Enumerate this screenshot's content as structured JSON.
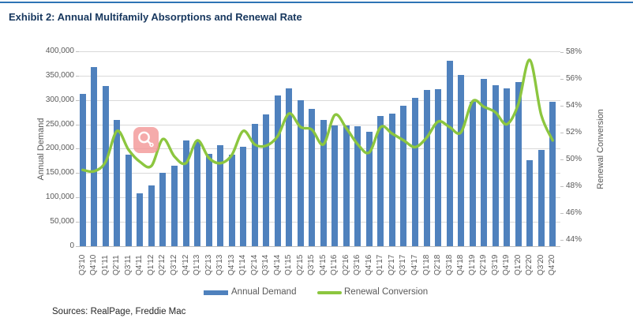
{
  "page": {
    "title": "Exhibit 2: Annual Multifamily Absorptions and Renewal Rate",
    "sources": "Sources: RealPage, Freddie Mac"
  },
  "chart_data": {
    "type": "bar+line combo",
    "categories": [
      "Q3'10",
      "Q4'10",
      "Q1'11",
      "Q2'11",
      "Q3'11",
      "Q4'11",
      "Q1'12",
      "Q2'12",
      "Q3'12",
      "Q4'12",
      "Q1'13",
      "Q2'13",
      "Q3'13",
      "Q4'13",
      "Q1'14",
      "Q2'14",
      "Q3'14",
      "Q4'14",
      "Q1'15",
      "Q2'15",
      "Q3'15",
      "Q4'15",
      "Q1'16",
      "Q2'16",
      "Q3'16",
      "Q4'16",
      "Q1'17",
      "Q2'17",
      "Q3'17",
      "Q4'17",
      "Q1'18",
      "Q2'18",
      "Q3'18",
      "Q4'18",
      "Q1'19",
      "Q2'19",
      "Q3'19",
      "Q4'19",
      "Q1'20",
      "Q2'20",
      "Q3'20",
      "Q4'20"
    ],
    "series": [
      {
        "name": "Annual Demand",
        "type": "bar",
        "axis": "left",
        "color": "#4F81BD",
        "values": [
          312000,
          368000,
          329000,
          259000,
          187000,
          109000,
          124000,
          150000,
          165000,
          217000,
          216000,
          190000,
          207000,
          188000,
          204000,
          251000,
          271000,
          310000,
          324000,
          300000,
          281000,
          259000,
          248000,
          248000,
          246000,
          235000,
          267000,
          272000,
          288000,
          305000,
          320000,
          323000,
          381000,
          352000,
          297000,
          343000,
          331000,
          324000,
          337000,
          177000,
          197000,
          297000
        ]
      },
      {
        "name": "Renewal Conversion",
        "type": "line",
        "axis": "right",
        "color": "#8CC63F",
        "values": [
          49.2,
          49.1,
          49.8,
          52.1,
          50.7,
          49.8,
          49.5,
          51.5,
          50.2,
          49.7,
          51.4,
          50.1,
          49.7,
          50.3,
          52.1,
          51.1,
          51.0,
          51.7,
          53.4,
          52.4,
          52.2,
          51.1,
          53.3,
          52.3,
          51.1,
          50.5,
          52.4,
          51.9,
          51.4,
          50.9,
          51.6,
          52.8,
          52.4,
          52.0,
          54.3,
          53.9,
          53.5,
          52.6,
          54.1,
          57.4,
          53.3,
          51.4
        ]
      }
    ],
    "left_axis": {
      "label": "Annual Demand",
      "min": 0,
      "max": 400000,
      "step": 50000,
      "tick_labels": [
        "400,000",
        "350,000",
        "300,000",
        "250,000",
        "200,000",
        "150,000",
        "100,000",
        "50,000",
        "0"
      ]
    },
    "right_axis": {
      "label": "Renewal Conversion",
      "min": 44,
      "max": 58,
      "step": 2,
      "tick_labels": [
        "58%",
        "56%",
        "54%",
        "52%",
        "50%",
        "48%",
        "46%",
        "44%"
      ]
    },
    "legend": {
      "position": "bottom",
      "items": [
        "Annual Demand",
        "Renewal Conversion"
      ]
    },
    "grid": "horizontal"
  },
  "overlay": {
    "icon": "magnifier-cursor"
  }
}
